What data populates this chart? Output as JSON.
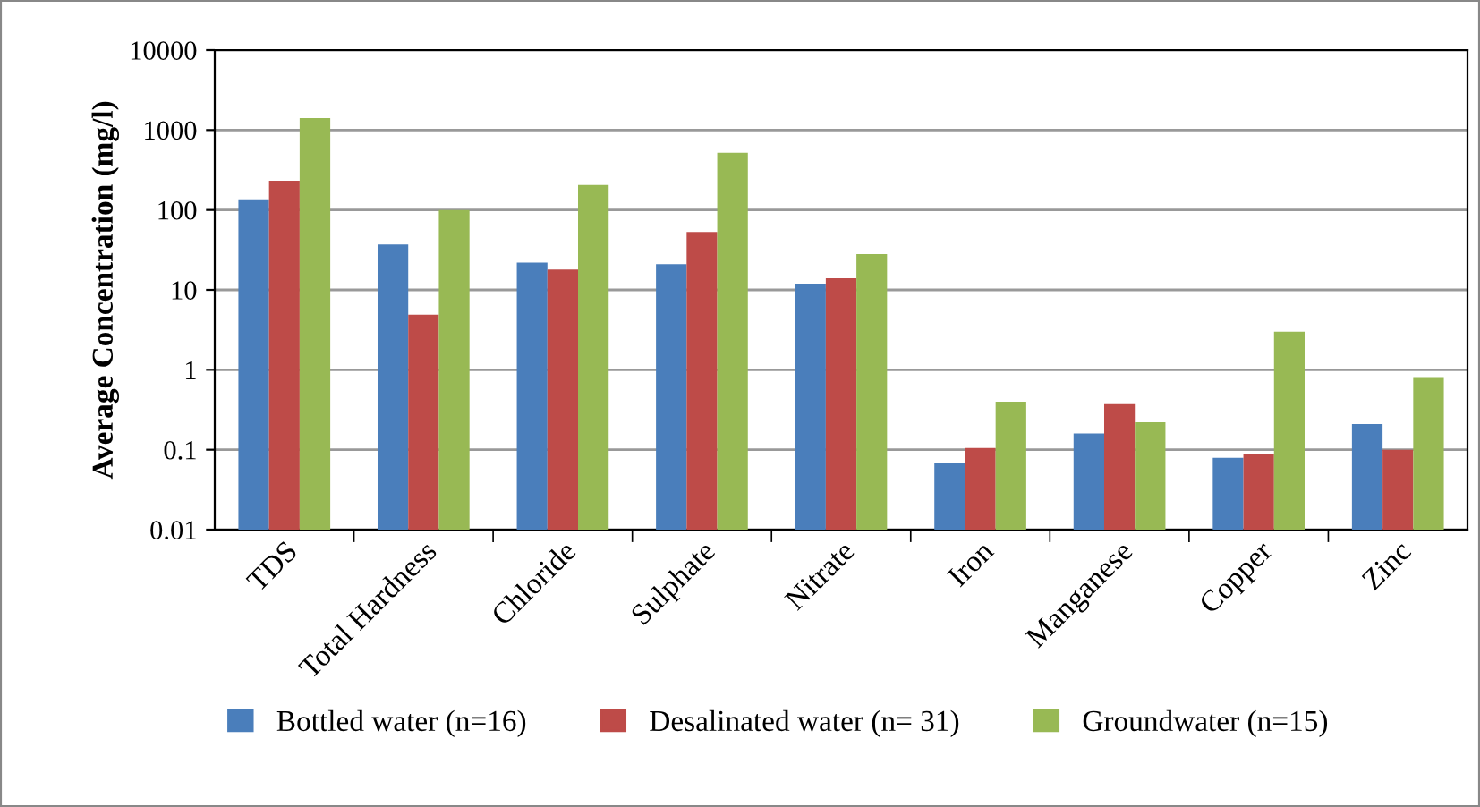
{
  "chart_data": {
    "type": "bar",
    "ylabel": "Average Concentration (mg/l)",
    "categories": [
      "TDS",
      "Total Hardness",
      "Chloride",
      "Sulphate",
      "Nitrate",
      "Iron",
      "Manganese",
      "Copper",
      "Zinc"
    ],
    "series": [
      {
        "name": "Bottled water (n=16)",
        "color": "#4a7ebb",
        "values": [
          136,
          37,
          22,
          21,
          12,
          0.068,
          0.16,
          0.079,
          0.21
        ]
      },
      {
        "name": "Desalinated water (n= 31)",
        "color": "#be4b48",
        "values": [
          232,
          4.9,
          18,
          53,
          14,
          0.105,
          0.38,
          0.089,
          0.1
        ]
      },
      {
        "name": "Groundwater (n=15)",
        "color": "#98b954",
        "values": [
          1410,
          100,
          206,
          520,
          28,
          0.4,
          0.22,
          3.0,
          0.81
        ]
      }
    ],
    "log": "y",
    "ylim": [
      0.01,
      10000
    ],
    "yticks": [
      0.01,
      0.1,
      1,
      10,
      100,
      1000,
      10000
    ],
    "grid": "y",
    "legend": "bottom"
  }
}
